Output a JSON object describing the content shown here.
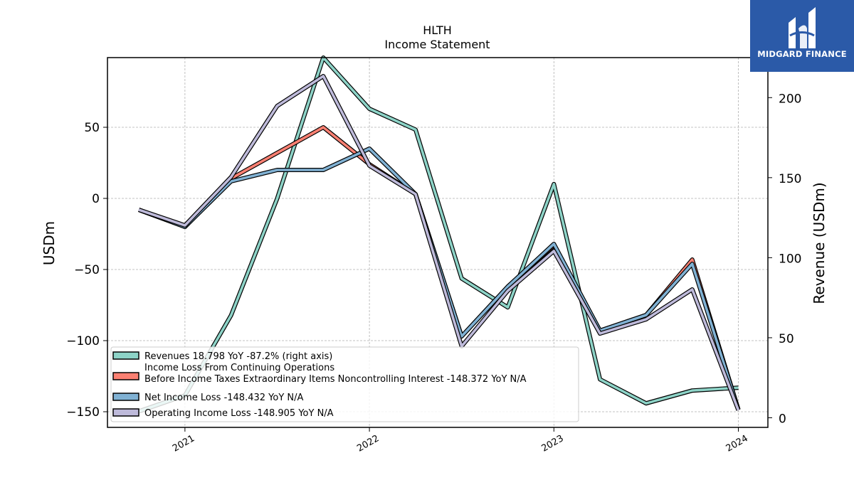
{
  "header": {
    "title": "HLTH",
    "subtitle": "Income Statement"
  },
  "logo": {
    "text": "MIDGARD FINANCE",
    "color": "#2b5aa8"
  },
  "chart_data": {
    "type": "line",
    "grid": true,
    "legend_position": "lower-left",
    "x_ticks": [
      "2021",
      "2022",
      "2023",
      "2024"
    ],
    "x_tick_values": [
      2021.0,
      2022.0,
      2023.0,
      2024.0
    ],
    "xlim": [
      2020.58,
      2024.16
    ],
    "left_axis": {
      "label": "USDm",
      "ylim": [
        -161,
        99
      ],
      "ticks": [
        50,
        0,
        -50,
        -100,
        -150
      ],
      "tick_labels": [
        "50",
        "0",
        "−50",
        "−100",
        "−150"
      ]
    },
    "right_axis": {
      "label": "Revenue (USDm)",
      "ylim": [
        -6,
        225
      ],
      "ticks": [
        0,
        50,
        100,
        150,
        200
      ],
      "tick_labels": [
        "0",
        "50",
        "100",
        "150",
        "200"
      ]
    },
    "x": [
      2020.75,
      2021.0,
      2021.25,
      2021.5,
      2021.75,
      2022.0,
      2022.25,
      2022.5,
      2022.75,
      2023.0,
      2023.25,
      2023.5,
      2023.75,
      2024.0
    ],
    "series": [
      {
        "name": "Revenues  18.798 YoY -87.2% (right axis)",
        "axis": "right",
        "color": "#8dd3c7",
        "values": [
          4,
          14,
          64,
          137,
          225,
          193,
          180,
          87,
          69,
          146,
          24,
          9,
          17,
          18.8
        ]
      },
      {
        "name": "Income Loss From Continuing Operations\nBefore Income Taxes Extraordinary Items Noncontrolling Interest  -148.372 YoY N/A",
        "axis": "left",
        "color": "#fb8072",
        "values": [
          -8,
          -20,
          14,
          32,
          50,
          24,
          3,
          -97,
          -62,
          -33,
          -93,
          -82,
          -43,
          -148.4
        ]
      },
      {
        "name": "Net Income Loss  -148.432 YoY N/A",
        "axis": "left",
        "color": "#80b1d3",
        "values": [
          -8,
          -20,
          12,
          20,
          20,
          35,
          3,
          -97,
          -62,
          -32,
          -93,
          -82,
          -46,
          -148.4
        ]
      },
      {
        "name": "Operating Income Loss  -148.905 YoY N/A",
        "axis": "left",
        "color": "#bebada",
        "values": [
          -8,
          -19,
          15,
          65,
          86,
          23,
          3,
          -104,
          -65,
          -37,
          -95,
          -85,
          -64,
          -148.9
        ]
      }
    ]
  }
}
